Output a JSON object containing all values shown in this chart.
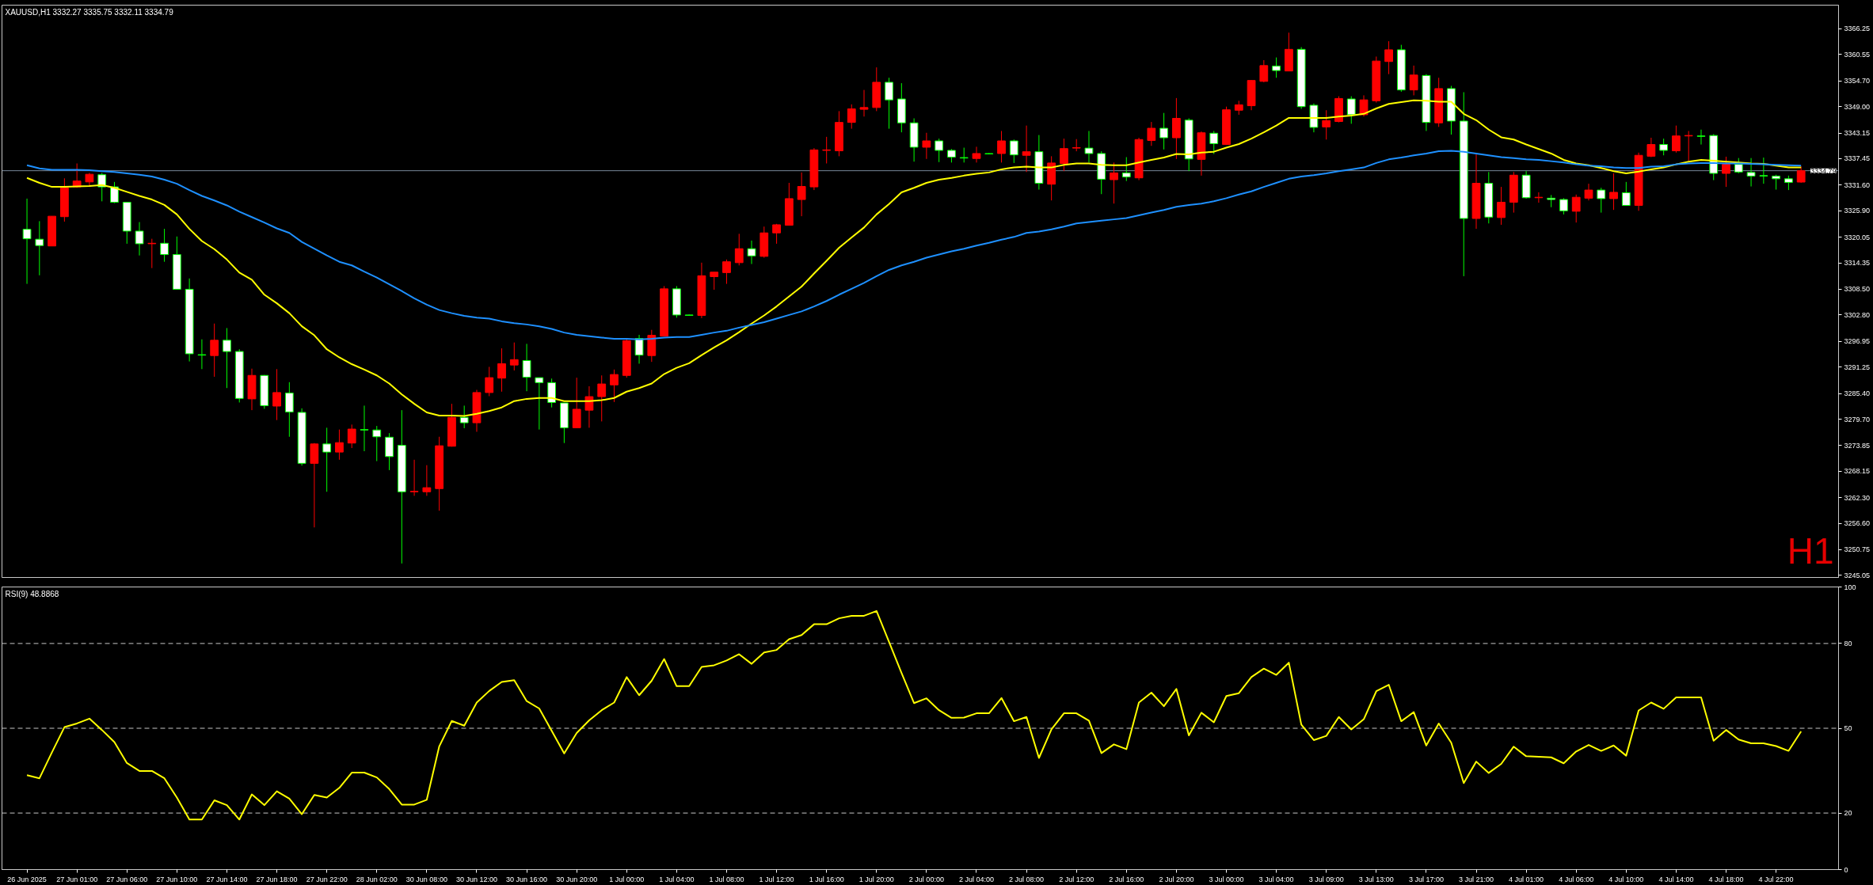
{
  "chart_data": [
    {
      "type": "candlestick",
      "title": "XAUUSD,H1 3332.27 3335.75 3332.11 3334.79",
      "categories": [
        null,
        null,
        null,
        null,
        null,
        null,
        null,
        null,
        null,
        null,
        null,
        null,
        null,
        null,
        null,
        null,
        null,
        null,
        null,
        null,
        null,
        null,
        null,
        null,
        null,
        null,
        null,
        null,
        null,
        null,
        null,
        null,
        null,
        null,
        null,
        null,
        null,
        null,
        null,
        null,
        null,
        null,
        null,
        null,
        null,
        null,
        null,
        null,
        null,
        null,
        null,
        null,
        null,
        null,
        null,
        null,
        null,
        null,
        null,
        null,
        null,
        null,
        null,
        null,
        null,
        null,
        null,
        null,
        null,
        null,
        null,
        null,
        null,
        null,
        null,
        null,
        null,
        null,
        null,
        null,
        null,
        null,
        null,
        null,
        null,
        null,
        null,
        null,
        null,
        null,
        null,
        null,
        null,
        null,
        null,
        null,
        null,
        null,
        null,
        null,
        null,
        null,
        null,
        null,
        null,
        null,
        null,
        null,
        null,
        null,
        null,
        null,
        null,
        null,
        null,
        null,
        null,
        null,
        null,
        null,
        null,
        null,
        null,
        null,
        null,
        null,
        null,
        null,
        null,
        null,
        null,
        null,
        null,
        null,
        null,
        null,
        null,
        null,
        null,
        null,
        null,
        null,
        null
      ],
      "ohlc": [
        [
          3321.8,
          3328.6,
          3309.7,
          3319.7
        ],
        [
          3319.6,
          3323.6,
          3311.6,
          3318.2
        ],
        [
          3318.1,
          3324.7,
          3318.1,
          3324.7
        ],
        [
          3324.6,
          3333.1,
          3323.5,
          3331.0
        ],
        [
          3331.2,
          3336.4,
          3331.0,
          3332.5
        ],
        [
          3332.3,
          3334.3,
          3331.4,
          3334.0
        ],
        [
          3333.9,
          3334.3,
          3328.0,
          3331.2
        ],
        [
          3331.2,
          3332.3,
          3327.6,
          3327.8
        ],
        [
          3327.8,
          3327.8,
          3318.6,
          3321.4
        ],
        [
          3321.4,
          3323.4,
          3316.0,
          3318.6
        ],
        [
          3318.6,
          3319.7,
          3313.2,
          3318.7
        ],
        [
          3318.7,
          3321.9,
          3314.6,
          3316.2
        ],
        [
          3316.2,
          3320.2,
          3308.4,
          3308.5
        ],
        [
          3308.5,
          3310.9,
          3292.5,
          3294.2
        ],
        [
          3294.0,
          3297.4,
          3290.8,
          3293.9
        ],
        [
          3293.8,
          3300.9,
          3289.1,
          3297.2
        ],
        [
          3297.2,
          3299.9,
          3286.6,
          3294.7
        ],
        [
          3294.7,
          3295.2,
          3283.4,
          3284.3
        ],
        [
          3284.2,
          3290.9,
          3281.7,
          3289.4
        ],
        [
          3289.4,
          3289.5,
          3282.0,
          3282.7
        ],
        [
          3282.6,
          3290.8,
          3279.5,
          3285.6
        ],
        [
          3285.5,
          3287.9,
          3275.8,
          3281.3
        ],
        [
          3281.2,
          3282.1,
          3269.4,
          3269.9
        ],
        [
          3269.9,
          3274.4,
          3255.7,
          3274.2
        ],
        [
          3274.2,
          3277.8,
          3263.6,
          3272.4
        ],
        [
          3272.4,
          3277.4,
          3270.7,
          3274.5
        ],
        [
          3274.4,
          3278.5,
          3273.3,
          3277.5
        ],
        [
          3277.4,
          3282.7,
          3272.6,
          3277.3
        ],
        [
          3277.3,
          3278.2,
          3270.4,
          3275.8
        ],
        [
          3275.7,
          3276.6,
          3268.4,
          3271.4
        ],
        [
          3273.9,
          3281.7,
          3247.7,
          3263.6
        ],
        [
          3263.6,
          3270.7,
          3262.7,
          3263.7
        ],
        [
          3263.6,
          3269.5,
          3262.7,
          3264.5
        ],
        [
          3264.3,
          3275.8,
          3259.4,
          3273.8
        ],
        [
          3273.7,
          3283.1,
          3273.6,
          3280.1
        ],
        [
          3280.1,
          3282.7,
          3277.7,
          3278.9
        ],
        [
          3278.9,
          3286.2,
          3276.9,
          3285.6
        ],
        [
          3285.6,
          3291.3,
          3284.8,
          3288.9
        ],
        [
          3288.8,
          3295.4,
          3285.8,
          3292.0
        ],
        [
          3291.7,
          3296.7,
          3290.5,
          3292.9
        ],
        [
          3292.7,
          3296.4,
          3285.9,
          3289.0
        ],
        [
          3288.9,
          3288.9,
          3277.4,
          3287.8
        ],
        [
          3287.8,
          3288.7,
          3282.3,
          3283.4
        ],
        [
          3283.3,
          3283.3,
          3274.4,
          3277.8
        ],
        [
          3277.8,
          3288.9,
          3277.8,
          3281.9
        ],
        [
          3281.7,
          3287.0,
          3277.8,
          3284.7
        ],
        [
          3284.7,
          3289.4,
          3279.2,
          3287.5
        ],
        [
          3287.3,
          3290.7,
          3283.5,
          3289.6
        ],
        [
          3289.4,
          3297.5,
          3288.9,
          3297.1
        ],
        [
          3297.6,
          3298.4,
          3292.0,
          3293.9
        ],
        [
          3293.8,
          3299.5,
          3292.4,
          3298.3
        ],
        [
          3298.1,
          3309.2,
          3298.1,
          3308.6
        ],
        [
          3308.6,
          3309.2,
          3302.2,
          3302.8
        ],
        [
          3302.8,
          3302.9,
          3302.7,
          3302.7
        ],
        [
          3302.7,
          3314.4,
          3302.1,
          3311.5
        ],
        [
          3311.3,
          3312.3,
          3308.4,
          3312.3
        ],
        [
          3312.2,
          3315.1,
          3309.7,
          3314.6
        ],
        [
          3314.4,
          3320.8,
          3313.8,
          3317.5
        ],
        [
          3317.5,
          3319.3,
          3314.1,
          3315.9
        ],
        [
          3315.8,
          3322.4,
          3315.5,
          3321.0
        ],
        [
          3321.0,
          3323.0,
          3318.6,
          3322.8
        ],
        [
          3322.7,
          3332.1,
          3322.7,
          3328.6
        ],
        [
          3328.4,
          3334.4,
          3324.7,
          3331.3
        ],
        [
          3331.2,
          3339.8,
          3330.5,
          3339.4
        ],
        [
          3339.3,
          3342.3,
          3336.4,
          3339.4
        ],
        [
          3339.2,
          3348.0,
          3338.0,
          3345.5
        ],
        [
          3345.5,
          3349.5,
          3344.1,
          3348.5
        ],
        [
          3348.4,
          3352.7,
          3346.8,
          3348.8
        ],
        [
          3348.8,
          3357.7,
          3348.0,
          3354.4
        ],
        [
          3354.4,
          3355.4,
          3344.1,
          3350.5
        ],
        [
          3350.7,
          3354.2,
          3343.3,
          3345.4
        ],
        [
          3345.4,
          3346.4,
          3336.8,
          3340.0
        ],
        [
          3340.0,
          3343.2,
          3337.4,
          3341.4
        ],
        [
          3341.4,
          3341.9,
          3336.7,
          3339.3
        ],
        [
          3339.3,
          3339.6,
          3336.6,
          3337.8
        ],
        [
          3337.7,
          3339.9,
          3336.6,
          3337.6
        ],
        [
          3337.5,
          3340.1,
          3336.6,
          3338.6
        ],
        [
          3338.6,
          3338.7,
          3338.4,
          3338.5
        ],
        [
          3338.6,
          3343.6,
          3336.6,
          3341.4
        ],
        [
          3341.4,
          3341.7,
          3336.5,
          3338.3
        ],
        [
          3338.2,
          3344.8,
          3334.5,
          3339.0
        ],
        [
          3339.0,
          3342.7,
          3330.6,
          3332.0
        ],
        [
          3331.8,
          3338.0,
          3328.2,
          3336.5
        ],
        [
          3336.4,
          3341.9,
          3334.7,
          3339.7
        ],
        [
          3339.8,
          3341.8,
          3339.1,
          3339.9
        ],
        [
          3339.8,
          3343.6,
          3336.6,
          3338.6
        ],
        [
          3338.6,
          3339.1,
          3329.6,
          3332.9
        ],
        [
          3332.8,
          3336.6,
          3327.5,
          3334.3
        ],
        [
          3334.3,
          3337.8,
          3332.5,
          3333.4
        ],
        [
          3333.2,
          3342.1,
          3332.7,
          3341.7
        ],
        [
          3341.5,
          3345.6,
          3340.3,
          3344.2
        ],
        [
          3344.2,
          3347.6,
          3339.5,
          3342.1
        ],
        [
          3342.1,
          3350.9,
          3337.4,
          3346.4
        ],
        [
          3346.0,
          3346.4,
          3334.7,
          3337.4
        ],
        [
          3337.3,
          3343.5,
          3333.7,
          3343.2
        ],
        [
          3343.1,
          3343.6,
          3338.5,
          3340.8
        ],
        [
          3340.6,
          3349.0,
          3340.5,
          3348.3
        ],
        [
          3348.2,
          3350.3,
          3347.2,
          3349.4
        ],
        [
          3349.2,
          3354.9,
          3348.2,
          3354.8
        ],
        [
          3354.6,
          3359.3,
          3354.4,
          3358.1
        ],
        [
          3358.0,
          3359.9,
          3355.4,
          3357.0
        ],
        [
          3356.9,
          3365.4,
          3356.9,
          3361.7
        ],
        [
          3361.7,
          3362.2,
          3348.5,
          3349.0
        ],
        [
          3349.3,
          3349.7,
          3343.3,
          3344.4
        ],
        [
          3344.5,
          3348.2,
          3341.7,
          3345.9
        ],
        [
          3345.7,
          3351.3,
          3345.5,
          3350.8
        ],
        [
          3350.7,
          3351.3,
          3345.2,
          3347.2
        ],
        [
          3347.2,
          3351.5,
          3346.8,
          3350.5
        ],
        [
          3350.3,
          3360.1,
          3349.9,
          3359.1
        ],
        [
          3359.0,
          3363.5,
          3356.2,
          3361.6
        ],
        [
          3361.6,
          3362.7,
          3352.3,
          3352.7
        ],
        [
          3352.7,
          3358.1,
          3351.5,
          3356.0
        ],
        [
          3355.9,
          3356.2,
          3343.6,
          3345.5
        ],
        [
          3345.4,
          3355.4,
          3344.5,
          3353.0
        ],
        [
          3353.0,
          3353.6,
          3342.8,
          3345.8
        ],
        [
          3345.8,
          3352.2,
          3311.4,
          3324.2
        ],
        [
          3324.2,
          3338.4,
          3321.9,
          3332.0
        ],
        [
          3332.0,
          3334.5,
          3323.1,
          3324.5
        ],
        [
          3324.4,
          3331.2,
          3322.8,
          3327.8
        ],
        [
          3327.8,
          3334.5,
          3325.5,
          3333.8
        ],
        [
          3333.8,
          3334.7,
          3328.6,
          3328.8
        ],
        [
          3328.8,
          3330.0,
          3327.7,
          3328.9
        ],
        [
          3328.7,
          3329.4,
          3326.7,
          3328.4
        ],
        [
          3328.4,
          3328.7,
          3325.1,
          3325.9
        ],
        [
          3325.8,
          3329.5,
          3323.3,
          3328.9
        ],
        [
          3328.7,
          3331.9,
          3328.2,
          3330.5
        ],
        [
          3330.5,
          3331.0,
          3325.5,
          3328.6
        ],
        [
          3328.6,
          3334.2,
          3326.1,
          3330.0
        ],
        [
          3329.9,
          3332.3,
          3327.1,
          3327.1
        ],
        [
          3327.1,
          3338.8,
          3325.9,
          3338.2
        ],
        [
          3338.0,
          3342.1,
          3337.8,
          3340.6
        ],
        [
          3340.6,
          3341.9,
          3338.2,
          3339.3
        ],
        [
          3339.2,
          3344.8,
          3338.8,
          3342.5
        ],
        [
          3342.5,
          3343.6,
          3337.0,
          3342.6
        ],
        [
          3342.5,
          3343.9,
          3340.6,
          3342.4
        ],
        [
          3342.6,
          3342.9,
          3332.7,
          3334.2
        ],
        [
          3334.2,
          3337.9,
          3331.2,
          3336.2
        ],
        [
          3336.2,
          3337.6,
          3334.2,
          3334.5
        ],
        [
          3334.4,
          3337.6,
          3331.3,
          3333.6
        ],
        [
          3333.7,
          3337.7,
          3331.9,
          3333.6
        ],
        [
          3333.6,
          3333.9,
          3330.6,
          3333.0
        ],
        [
          3333.0,
          3333.7,
          3330.5,
          3332.2
        ],
        [
          3332.27,
          3335.75,
          3332.11,
          3334.79
        ]
      ],
      "colors": [
        "#ffffff",
        "#ffffff",
        "#ff0000",
        "#ff0000",
        "#ff0000",
        "#ff0000",
        "#ffffff",
        "#ffffff",
        "#ffffff",
        "#ffffff",
        "#ff0000",
        "#ffffff",
        "#ffffff",
        "#ffffff",
        "#ffffff",
        "#ff0000",
        "#ffffff",
        "#ffffff",
        "#ff0000",
        "#ffffff",
        "#ff0000",
        "#ffffff",
        "#ffffff",
        "#ff0000",
        "#ffffff",
        "#ff0000",
        "#ff0000",
        "#ffffff",
        "#ffffff",
        "#ffffff",
        "#ffffff",
        "#ff0000",
        "#ff0000",
        "#ff0000",
        "#ff0000",
        "#ffffff",
        "#ff0000",
        "#ff0000",
        "#ff0000",
        "#ff0000",
        "#ffffff",
        "#ffffff",
        "#ffffff",
        "#ffffff",
        "#ff0000",
        "#ff0000",
        "#ff0000",
        "#ff0000",
        "#ff0000",
        "#ffffff",
        "#ff0000",
        "#ff0000",
        "#ffffff",
        "#ffffff",
        "#ff0000",
        "#ff0000",
        "#ff0000",
        "#ff0000",
        "#ffffff",
        "#ff0000",
        "#ff0000",
        "#ff0000",
        "#ff0000",
        "#ff0000",
        "#ff0000",
        "#ff0000",
        "#ff0000",
        "#ff0000",
        "#ff0000",
        "#ffffff",
        "#ffffff",
        "#ffffff",
        "#ff0000",
        "#ffffff",
        "#ffffff",
        "#ffffff",
        "#ff0000",
        "#ffffff",
        "#ff0000",
        "#ffffff",
        "#ff0000",
        "#ffffff",
        "#ff0000",
        "#ff0000",
        "#ff0000",
        "#ffffff",
        "#ffffff",
        "#ff0000",
        "#ffffff",
        "#ff0000",
        "#ff0000",
        "#ffffff",
        "#ff0000",
        "#ffffff",
        "#ff0000",
        "#ffffff",
        "#ff0000",
        "#ff0000",
        "#ff0000",
        "#ff0000",
        "#ffffff",
        "#ff0000",
        "#ffffff",
        "#ffffff",
        "#ff0000",
        "#ff0000",
        "#ffffff",
        "#ff0000",
        "#ff0000",
        "#ff0000",
        "#ffffff",
        "#ff0000",
        "#ffffff",
        "#ff0000",
        "#ffffff",
        "#ffffff",
        "#ff0000",
        "#ffffff",
        "#ff0000",
        "#ff0000",
        "#ffffff",
        "#ff0000",
        "#ffffff",
        "#ffffff",
        "#ff0000",
        "#ff0000",
        "#ffffff",
        "#ff0000",
        "#ffffff",
        "#ff0000",
        "#ff0000",
        "#ffffff",
        "#ff0000",
        "#ff0000",
        "#ffffff",
        "#ffffff",
        "#ff0000",
        "#ffffff",
        "#ffffff",
        "#ffffff",
        "#ffffff",
        "#ffffff",
        "#ff0000"
      ],
      "color": "#00ff00",
      "series": [
        {
          "type": "line",
          "color": "#ffff00",
          "values": [
            3333.2,
            3332.1,
            3331.2,
            3331.2,
            3331.3,
            3331.4,
            3331.6,
            3331.0,
            3330.1,
            3329.2,
            3328.4,
            3327.2,
            3325.1,
            3321.9,
            3319.2,
            3317.4,
            3315.1,
            3312.2,
            3310.6,
            3307.3,
            3305.4,
            3303.2,
            3300.3,
            3298.3,
            3295.2,
            3293.4,
            3291.9,
            3290.7,
            3289.4,
            3287.6,
            3285.2,
            3283.1,
            3281.2,
            3280.5,
            3280.5,
            3280.4,
            3280.9,
            3281.5,
            3282.3,
            3283.7,
            3284.2,
            3284.4,
            3284.4,
            3283.7,
            3283.7,
            3283.7,
            3283.9,
            3284.4,
            3285.8,
            3286.6,
            3287.6,
            3289.7,
            3291.1,
            3292.1,
            3293.9,
            3295.6,
            3297.2,
            3299.0,
            3300.9,
            3302.7,
            3304.7,
            3306.9,
            3309.1,
            3312.0,
            3314.8,
            3317.7,
            3320.0,
            3322.2,
            3325.1,
            3327.4,
            3330.0,
            3331.0,
            3332.1,
            3332.8,
            3333.2,
            3333.7,
            3334.1,
            3334.4,
            3335.1,
            3335.5,
            3335.7,
            3335.5,
            3335.5,
            3336.1,
            3336.4,
            3336.4,
            3336.1,
            3336.0,
            3336.0,
            3336.6,
            3337.2,
            3337.7,
            3338.5,
            3338.4,
            3338.8,
            3339.0,
            3339.9,
            3340.7,
            3341.9,
            3343.3,
            3344.8,
            3346.5,
            3346.5,
            3346.5,
            3346.5,
            3346.8,
            3347.0,
            3347.4,
            3348.6,
            3349.6,
            3350.0,
            3350.4,
            3350.3,
            3350.1,
            3350.1,
            3347.4,
            3346.0,
            3343.9,
            3342.2,
            3341.7,
            3340.6,
            3339.6,
            3338.6,
            3337.2,
            3336.4,
            3336.0,
            3335.4,
            3334.7,
            3334.2,
            3334.6,
            3335.1,
            3335.5,
            3336.2,
            3336.8,
            3337.2,
            3337.0,
            3336.8,
            3336.6,
            3336.4,
            3336.3,
            3335.9,
            3335.5,
            3335.5
          ]
        },
        {
          "type": "line",
          "color": "#1e90ff",
          "values": [
            3336.0,
            3335.3,
            3335.0,
            3335.0,
            3335.0,
            3334.9,
            3334.7,
            3334.5,
            3334.2,
            3333.9,
            3333.5,
            3332.8,
            3331.9,
            3330.5,
            3329.2,
            3328.2,
            3327.1,
            3325.7,
            3324.5,
            3323.3,
            3322.0,
            3321.0,
            3319.0,
            3317.5,
            3316.0,
            3314.6,
            3313.8,
            3312.4,
            3311.1,
            3309.6,
            3308.1,
            3306.5,
            3305.1,
            3303.9,
            3303.2,
            3302.6,
            3302.2,
            3302.0,
            3301.4,
            3301.0,
            3300.7,
            3300.3,
            3299.7,
            3298.9,
            3298.4,
            3298.1,
            3297.8,
            3297.5,
            3297.5,
            3297.4,
            3297.5,
            3297.8,
            3297.9,
            3297.9,
            3298.4,
            3298.9,
            3299.3,
            3300.0,
            3300.6,
            3301.2,
            3302.0,
            3302.8,
            3303.6,
            3304.7,
            3305.9,
            3307.3,
            3308.6,
            3309.9,
            3311.4,
            3312.8,
            3313.8,
            3314.6,
            3315.5,
            3316.2,
            3316.9,
            3317.5,
            3318.2,
            3318.8,
            3319.5,
            3320.1,
            3321.0,
            3321.3,
            3321.8,
            3322.4,
            3323.1,
            3323.4,
            3323.7,
            3324.0,
            3324.3,
            3324.9,
            3325.5,
            3326.1,
            3326.8,
            3327.2,
            3327.5,
            3328.0,
            3328.7,
            3329.5,
            3330.2,
            3331.2,
            3332.1,
            3333.0,
            3333.5,
            3333.8,
            3334.2,
            3334.7,
            3335.1,
            3335.5,
            3336.5,
            3337.3,
            3337.7,
            3338.2,
            3338.6,
            3339.1,
            3339.2,
            3339.0,
            3338.6,
            3338.2,
            3337.8,
            3337.6,
            3337.3,
            3337.2,
            3336.9,
            3336.6,
            3336.2,
            3335.9,
            3335.8,
            3335.5,
            3335.4,
            3335.4,
            3335.7,
            3335.8,
            3336.2,
            3336.4,
            3336.5,
            3336.5,
            3336.4,
            3336.4,
            3336.3,
            3336.2,
            3336.1,
            3336.0,
            3335.9
          ]
        }
      ],
      "ylim": [
        3244.6,
        3371.5
      ],
      "yticks": [
        3366.25,
        3360.55,
        {
          "value": 3354.7,
          "label": "3354.70"
        },
        {
          "value": 3349,
          "label": "3349.00"
        },
        3343.15,
        3337.45,
        {
          "value": 3331.6,
          "label": "3331.60"
        },
        {
          "value": 3325.9,
          "label": "3325.90"
        },
        3320.05,
        3314.35,
        {
          "value": 3308.5,
          "label": "3308.50"
        },
        {
          "value": 3302.8,
          "label": "3302.80"
        },
        3296.95,
        3291.25,
        {
          "value": 3285.4,
          "label": "3285.40"
        },
        {
          "value": 3279.7,
          "label": "3279.70"
        },
        3273.85,
        3268.15,
        {
          "value": 3262.3,
          "label": "3262.30"
        },
        {
          "value": 3256.6,
          "label": "3256.60"
        },
        3250.75,
        3245.05
      ],
      "ref_lines": [
        {
          "axis": "y",
          "value": 3334.79,
          "label": "3334.79",
          "color": "#778899"
        }
      ],
      "annotations": [
        "H1"
      ],
      "tick_labels": "y"
    },
    {
      "type": "line",
      "title": "RSI(9) 48.8868",
      "categories": [
        "26 Jun 2025",
        null,
        null,
        null,
        "27 Jun 01:00",
        null,
        null,
        null,
        "27 Jun 06:00",
        null,
        null,
        null,
        "27 Jun 10:00",
        null,
        null,
        null,
        "27 Jun 14:00",
        null,
        null,
        null,
        "27 Jun 18:00",
        null,
        null,
        null,
        "27 Jun 22:00",
        null,
        null,
        null,
        "28 Jun 02:00",
        null,
        null,
        null,
        "30 Jun 08:00",
        null,
        null,
        null,
        "30 Jun 12:00",
        null,
        null,
        null,
        "30 Jun 16:00",
        null,
        null,
        null,
        "30 Jun 20:00",
        null,
        null,
        null,
        "1 Jul 00:00",
        null,
        null,
        null,
        "1 Jul 04:00",
        null,
        null,
        null,
        "1 Jul 08:00",
        null,
        null,
        null,
        "1 Jul 12:00",
        null,
        null,
        null,
        "1 Jul 16:00",
        null,
        null,
        null,
        "1 Jul 20:00",
        null,
        null,
        null,
        "2 Jul 00:00",
        null,
        null,
        null,
        "2 Jul 04:00",
        null,
        null,
        null,
        "2 Jul 08:00",
        null,
        null,
        null,
        "2 Jul 12:00",
        null,
        null,
        null,
        "2 Jul 16:00",
        null,
        null,
        null,
        "2 Jul 20:00",
        null,
        null,
        null,
        "3 Jul 00:00",
        null,
        null,
        null,
        "3 Jul 04:00",
        null,
        null,
        null,
        "3 Jul 09:00",
        null,
        null,
        null,
        "3 Jul 13:00",
        null,
        null,
        null,
        "3 Jul 17:00",
        null,
        null,
        null,
        "3 Jul 21:00",
        null,
        null,
        null,
        "4 Jul 01:00",
        null,
        null,
        null,
        "4 Jul 06:00",
        null,
        null,
        null,
        "4 Jul 10:00",
        null,
        null,
        null,
        "4 Jul 14:00",
        null,
        null,
        null,
        "4 Jul 18:00",
        null,
        null,
        null,
        "4 Jul 22:00",
        null,
        null
      ],
      "series": [
        {
          "color": "#ffff00",
          "values": [
            33.4,
            32.3,
            41.5,
            50.4,
            51.7,
            53.4,
            49.4,
            45.1,
            37.7,
            34.9,
            34.9,
            32.3,
            25.5,
            17.7,
            17.7,
            24.5,
            22.8,
            17.7,
            26.6,
            22.8,
            27.7,
            25.1,
            19.6,
            26.4,
            25.5,
            28.9,
            34.3,
            34.3,
            32.6,
            28.5,
            23.0,
            23.0,
            24.7,
            43.6,
            52.6,
            50.9,
            59.1,
            63.2,
            66.4,
            67.0,
            59.6,
            57.0,
            49.1,
            41.1,
            48.3,
            52.8,
            56.4,
            59.1,
            68.1,
            61.7,
            66.8,
            74.5,
            64.9,
            64.9,
            71.7,
            72.3,
            74.0,
            76.2,
            72.8,
            76.8,
            77.7,
            81.5,
            83.0,
            86.8,
            86.8,
            88.9,
            89.8,
            89.8,
            91.5,
            80.6,
            69.6,
            58.9,
            60.6,
            56.4,
            53.7,
            53.8,
            55.3,
            55.3,
            60.7,
            52.5,
            54.0,
            39.5,
            49.6,
            55.3,
            55.3,
            52.7,
            41.2,
            44.3,
            42.6,
            59.1,
            62.6,
            57.8,
            63.9,
            47.5,
            55.5,
            52.1,
            61.4,
            62.4,
            68.1,
            71.1,
            68.9,
            73.2,
            51.3,
            45.8,
            47.3,
            54.0,
            49.6,
            53.2,
            63.1,
            65.4,
            52.5,
            55.7,
            43.9,
            51.7,
            44.9,
            30.6,
            38.2,
            34.2,
            37.4,
            43.5,
            40.1,
            39.9,
            39.7,
            37.6,
            41.8,
            44.1,
            42.0,
            43.9,
            40.3,
            56.3,
            59.1,
            56.9,
            60.9,
            60.9,
            60.9,
            45.6,
            49.4,
            46.0,
            44.7,
            44.7,
            43.7,
            42.0,
            48.9
          ]
        }
      ],
      "ylim": [
        0,
        100
      ],
      "yticks": [
        0,
        20,
        50,
        80,
        100
      ],
      "ref_lines": [
        {
          "axis": "y",
          "value": 80,
          "color": "#c8c8c8",
          "line_style": "dashed"
        },
        {
          "axis": "y",
          "value": 50,
          "color": "#c8c8c8",
          "line_style": "dashed"
        },
        {
          "axis": "y",
          "value": 20,
          "color": "#c8c8c8",
          "line_style": "dashed"
        }
      ]
    }
  ]
}
